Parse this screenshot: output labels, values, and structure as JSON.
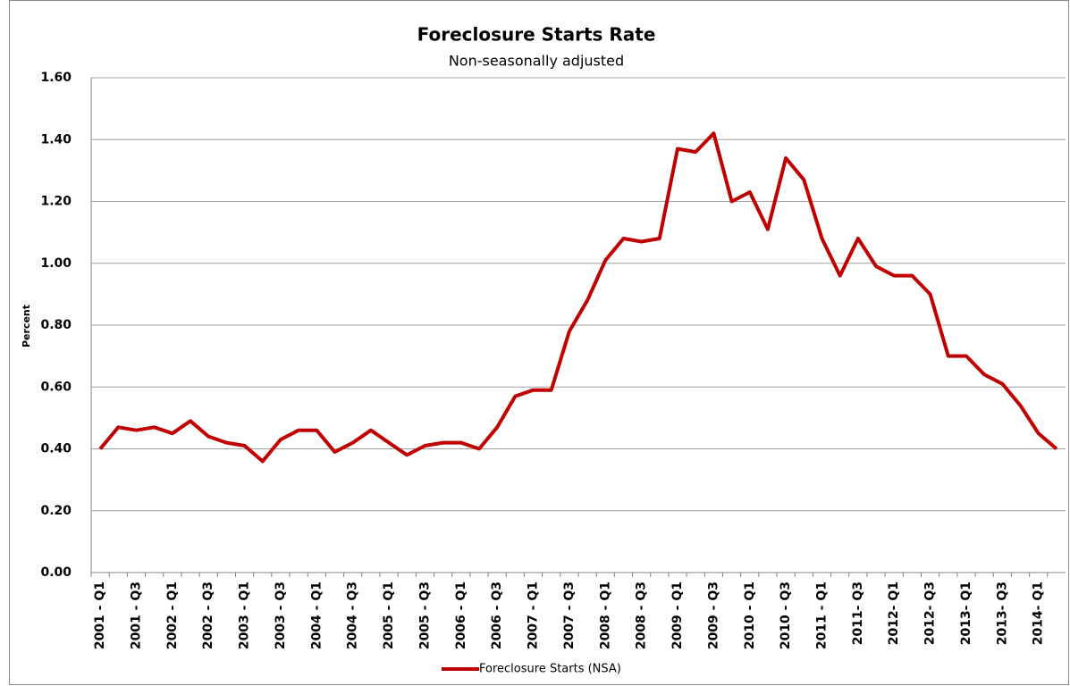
{
  "chart_data": {
    "type": "line",
    "title": "Foreclosure Starts Rate",
    "subtitle": "Non-seasonally adjusted",
    "y_label": "Percent",
    "categories": [
      "2001 - Q1",
      null,
      "2001 - Q3",
      null,
      "2002 - Q1",
      null,
      "2002 - Q3",
      null,
      "2003 - Q1",
      null,
      "2003 - Q3",
      null,
      "2004 - Q1",
      null,
      "2004 - Q3",
      null,
      "2005 - Q1",
      null,
      "2005 - Q3",
      null,
      "2006 - Q1",
      null,
      "2006 - Q3",
      null,
      "2007 - Q1",
      null,
      "2007 - Q3",
      null,
      "2008 - Q1",
      null,
      "2008 - Q3",
      null,
      "2009 - Q1",
      null,
      "2009 - Q3",
      null,
      "2010 - Q1",
      null,
      "2010 - Q3",
      null,
      "2011 - Q1",
      null,
      "2011- Q3",
      null,
      "2012- Q1",
      null,
      "2012- Q3",
      null,
      "2013- Q1",
      null,
      "2013- Q3",
      null,
      "2014- Q1",
      null
    ],
    "series": [
      {
        "name": "Foreclosure Starts (NSA)",
        "color": "#c00000",
        "values": [
          0.4,
          0.47,
          0.46,
          0.47,
          0.45,
          0.49,
          0.44,
          0.42,
          0.41,
          0.36,
          0.43,
          0.46,
          0.46,
          0.39,
          0.42,
          0.46,
          0.42,
          0.38,
          0.41,
          0.42,
          0.42,
          0.4,
          0.47,
          0.57,
          0.59,
          0.59,
          0.78,
          0.88,
          1.01,
          1.08,
          1.07,
          1.08,
          1.37,
          1.36,
          1.42,
          1.2,
          1.23,
          1.11,
          1.34,
          1.27,
          1.08,
          0.96,
          1.08,
          0.99,
          0.96,
          0.96,
          0.9,
          0.7,
          0.7,
          0.64,
          0.61,
          0.54,
          0.45,
          0.4
        ]
      }
    ],
    "ylim": [
      0,
      1.6
    ],
    "yticks": [
      {
        "value": 0,
        "label": "0.00"
      },
      {
        "value": 0.2,
        "label": "0.20"
      },
      {
        "value": 0.4,
        "label": "0.40"
      },
      {
        "value": 0.6,
        "label": "0.60"
      },
      {
        "value": 0.8,
        "label": "0.80"
      },
      {
        "value": 1.0,
        "label": "1.00"
      },
      {
        "value": 1.2,
        "label": "1.20"
      },
      {
        "value": 1.4,
        "label": "1.40"
      },
      {
        "value": 1.6,
        "label": "1.60"
      }
    ],
    "grid": true,
    "legend": "bottom"
  }
}
